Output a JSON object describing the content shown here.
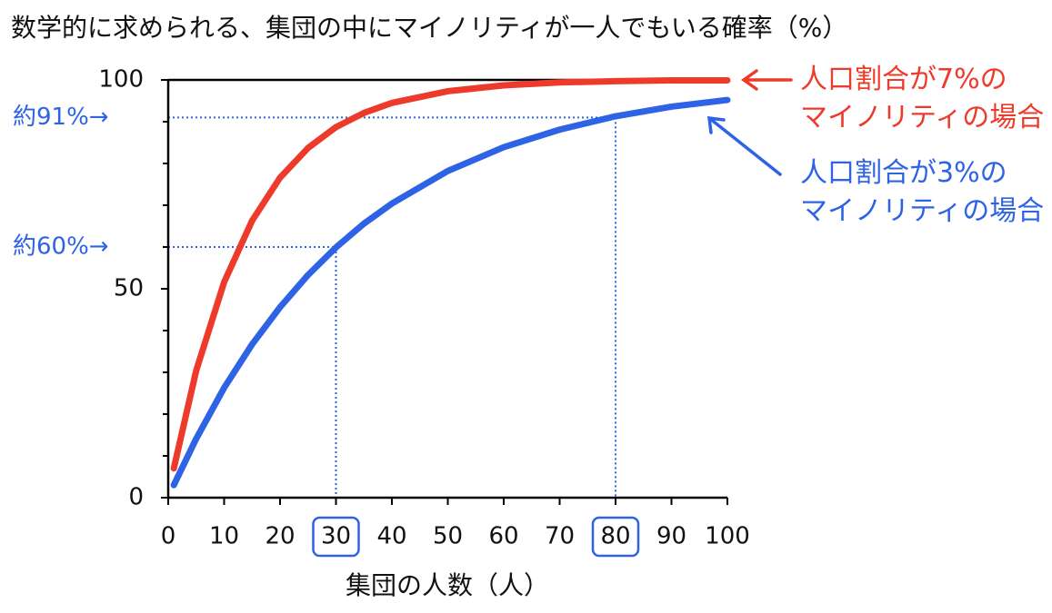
{
  "chart_data": {
    "type": "line",
    "title": "数学的に求められる、集団の中にマイノリティが一人でもいる確率（%）",
    "xlabel": "集団の人数（人）",
    "x": [
      1,
      5,
      10,
      15,
      20,
      25,
      30,
      35,
      40,
      50,
      60,
      70,
      80,
      90,
      100
    ],
    "series": [
      {
        "name": "人口割合が7%の\nマイノリティの場合",
        "color": "#ee3a2a",
        "values": [
          7,
          30.4,
          51.6,
          66.3,
          76.6,
          83.7,
          88.7,
          92.1,
          94.5,
          97.3,
          98.7,
          99.4,
          99.7,
          99.9,
          99.9
        ]
      },
      {
        "name": "人口割合が3%の\nマイノリティの場合",
        "color": "#2e63e6",
        "values": [
          3,
          14.1,
          26.3,
          36.7,
          45.6,
          53.3,
          59.9,
          65.6,
          70.4,
          78.2,
          83.9,
          88.1,
          91.3,
          93.6,
          95.2
        ]
      }
    ],
    "xlim": [
      0,
      100
    ],
    "xticks": [
      0,
      10,
      20,
      30,
      40,
      50,
      60,
      70,
      80,
      90,
      100
    ],
    "ylim": [
      0,
      100
    ],
    "yticks": [
      0,
      50,
      100
    ],
    "yminorticks": [
      10,
      20,
      30,
      40,
      60,
      70,
      80,
      90
    ],
    "guides": [
      {
        "x": 30,
        "y": 60,
        "label": "約60%→",
        "color": "#2e63e6"
      },
      {
        "x": 80,
        "y": 91,
        "label": "約91%→",
        "color": "#2e63e6"
      }
    ]
  }
}
